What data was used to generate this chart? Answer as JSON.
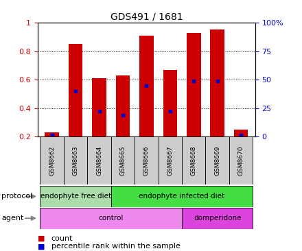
{
  "title": "GDS491 / 1681",
  "samples": [
    "GSM8662",
    "GSM8663",
    "GSM8664",
    "GSM8665",
    "GSM8666",
    "GSM8667",
    "GSM8668",
    "GSM8669",
    "GSM8670"
  ],
  "count_values": [
    0.23,
    0.85,
    0.61,
    0.63,
    0.91,
    0.67,
    0.93,
    0.95,
    0.25
  ],
  "percentile_values": [
    0.21,
    0.52,
    0.38,
    0.35,
    0.56,
    0.38,
    0.59,
    0.59,
    0.21
  ],
  "bar_bottom": 0.2,
  "ylim": [
    0.2,
    1.0
  ],
  "yticks": [
    0.2,
    0.4,
    0.6,
    0.8,
    1.0
  ],
  "ytick_labels": [
    "0.2",
    "0.4",
    "0.6",
    "0.8",
    "1"
  ],
  "right_ytick_labels": [
    "0",
    "25",
    "50",
    "75",
    "100%"
  ],
  "bar_color": "#cc0000",
  "percentile_color": "#0000cc",
  "bar_width": 0.6,
  "protocol_groups": [
    {
      "label": "endophyte free diet",
      "start": 0,
      "end": 3,
      "color": "#aaddaa"
    },
    {
      "label": "endophyte infected diet",
      "start": 3,
      "end": 9,
      "color": "#44dd44"
    }
  ],
  "agent_groups": [
    {
      "label": "control",
      "start": 0,
      "end": 6,
      "color": "#ee88ee"
    },
    {
      "label": "domperidone",
      "start": 6,
      "end": 9,
      "color": "#dd44dd"
    }
  ],
  "xtick_bg_color": "#cccccc",
  "protocol_label": "protocol",
  "agent_label": "agent",
  "legend_count_label": "count",
  "legend_percentile_label": "percentile rank within the sample",
  "bg_color": "#ffffff",
  "tick_label_color_left": "#cc0000",
  "tick_label_color_right": "#0000cc"
}
